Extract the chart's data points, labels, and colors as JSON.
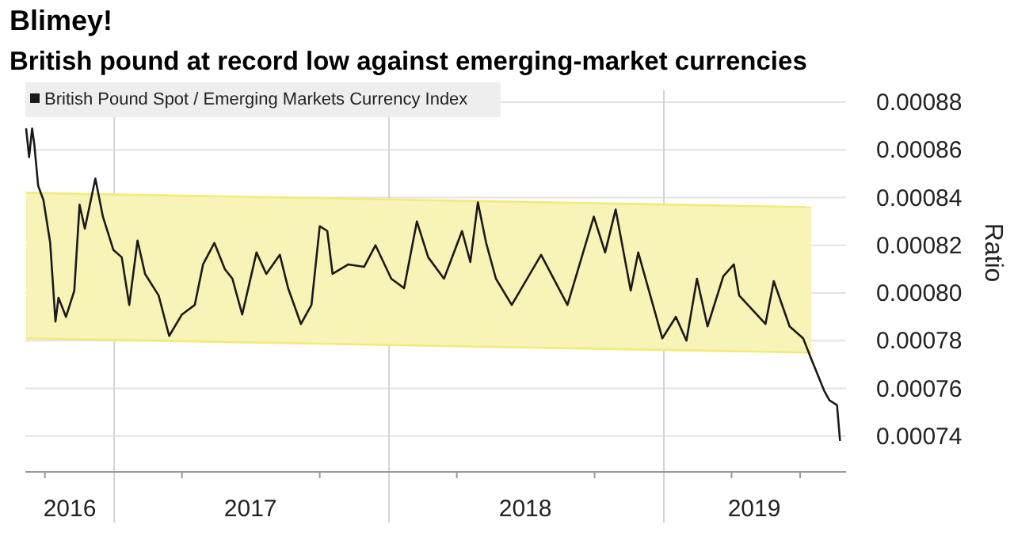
{
  "chart_data": {
    "type": "line",
    "title": "Blimey!",
    "subtitle": "British pound at record low against emerging-market currencies",
    "ylabel": "Ratio",
    "xlim": [
      "2016-09-05",
      "2019-08-31"
    ],
    "ylim": [
      0.000725,
      0.000885
    ],
    "yticks": [
      0.00074,
      0.00076,
      0.00078,
      {
        "value": 0.0008,
        "label": "0.00080"
      },
      0.00082,
      0.00084,
      0.00086,
      0.00088
    ],
    "xticks": [
      {
        "value": "2016-10-01",
        "label": null
      },
      {
        "value": "2016-11-03",
        "label": "2016"
      },
      {
        "value": "2017-04-01",
        "label": null
      },
      {
        "value": "2017-07-01",
        "label": "2017"
      },
      {
        "value": "2017-10-01",
        "label": null
      },
      {
        "value": "2018-04-01",
        "label": null
      },
      {
        "value": "2018-07-01",
        "label": "2018"
      },
      {
        "value": "2018-10-01",
        "label": null
      },
      {
        "value": "2019-04-01",
        "label": null
      },
      {
        "value": "2019-05-01",
        "label": "2019"
      },
      {
        "value": "2019-07-01",
        "label": null
      }
    ],
    "grid": "y",
    "legend": "top left",
    "ref_lines": [
      {
        "axis": "x",
        "value": "2017-01-01",
        "color": "#d4d4d4"
      },
      {
        "axis": "x",
        "value": "2018-01-01",
        "color": "#d4d4d4"
      },
      {
        "axis": "x",
        "value": "2019-01-01",
        "color": "#d4d4d4"
      }
    ],
    "series": [
      {
        "type": "line",
        "color": "#f3ea7a",
        "x": [
          "2016-09-06",
          "2019-07-16"
        ],
        "values": [
          0.000842,
          0.000836
        ]
      },
      {
        "type": "line",
        "color": "#f3ea7a",
        "x": [
          "2016-09-06",
          "2019-07-16"
        ],
        "values": [
          0.000781,
          0.000775
        ]
      },
      {
        "name": "British Pound Spot / Emerging Markets Currency Index",
        "color": "#1a1a1a",
        "x": [
          "2016-09-06",
          "2016-09-10",
          "2016-09-14",
          "2016-09-17",
          "2016-09-22",
          "2016-09-29",
          "2016-10-08",
          "2016-10-15",
          "2016-10-19",
          "2016-10-29",
          "2016-11-09",
          "2016-11-16",
          "2016-11-23",
          "2016-12-07",
          "2016-12-17",
          "2016-12-31",
          "2017-01-11",
          "2017-01-21",
          "2017-02-01",
          "2017-02-11",
          "2017-03-01",
          "2017-03-15",
          "2017-04-01",
          "2017-04-18",
          "2017-04-29",
          "2017-05-14",
          "2017-05-28",
          "2017-06-07",
          "2017-06-20",
          "2017-07-09",
          "2017-07-22",
          "2017-08-09",
          "2017-08-20",
          "2017-09-06",
          "2017-09-20",
          "2017-10-01",
          "2017-10-11",
          "2017-10-18",
          "2017-11-08",
          "2017-11-29",
          "2017-12-14",
          "2018-01-04",
          "2018-01-21",
          "2018-02-07",
          "2018-02-22",
          "2018-03-15",
          "2018-04-08",
          "2018-04-19",
          "2018-04-29",
          "2018-05-10",
          "2018-05-23",
          "2018-06-13",
          "2018-07-22",
          "2018-08-26",
          "2018-09-30",
          "2018-10-15",
          "2018-10-29",
          "2018-11-18",
          "2018-11-28",
          "2018-12-30",
          "2019-01-17",
          "2019-01-31",
          "2019-02-14",
          "2019-02-28",
          "2019-03-21",
          "2019-04-04",
          "2019-04-11",
          "2019-05-16",
          "2019-05-27",
          "2019-06-17",
          "2019-07-05",
          "2019-07-15",
          "2019-08-02",
          "2019-08-09",
          "2019-08-19",
          "2019-08-23"
        ],
        "values": [
          0.000869,
          0.000857,
          0.000869,
          0.000862,
          0.000845,
          0.000839,
          0.000821,
          0.000788,
          0.000798,
          0.00079,
          0.000801,
          0.000837,
          0.000827,
          0.000848,
          0.000832,
          0.000818,
          0.000815,
          0.000795,
          0.000822,
          0.000808,
          0.000799,
          0.000782,
          0.000791,
          0.000795,
          0.000812,
          0.000821,
          0.00081,
          0.000806,
          0.000791,
          0.000817,
          0.000808,
          0.000816,
          0.000802,
          0.000787,
          0.000795,
          0.000828,
          0.000826,
          0.000808,
          0.000812,
          0.000811,
          0.00082,
          0.000806,
          0.000802,
          0.00083,
          0.000815,
          0.000806,
          0.000826,
          0.000813,
          0.000838,
          0.000821,
          0.000806,
          0.000795,
          0.000816,
          0.000795,
          0.000832,
          0.000817,
          0.000835,
          0.000801,
          0.000817,
          0.000781,
          0.00079,
          0.00078,
          0.000806,
          0.000786,
          0.000807,
          0.000812,
          0.000799,
          0.000787,
          0.000805,
          0.000786,
          0.000781,
          0.000773,
          0.000759,
          0.000755,
          0.000753,
          0.000738
        ]
      }
    ]
  }
}
